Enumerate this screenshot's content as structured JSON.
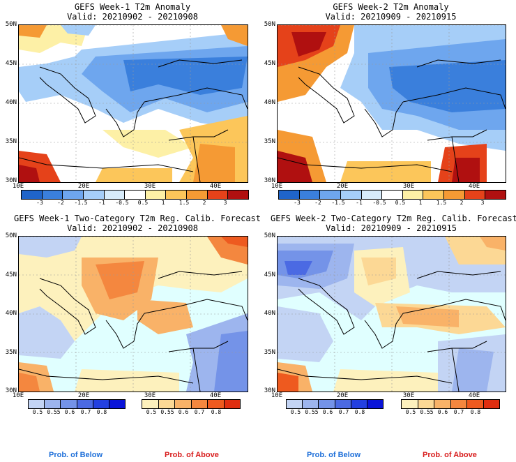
{
  "panels": [
    {
      "title1": "GEFS Week-1 T2m Anomaly",
      "title2": "Valid: 20210902 - 20210908"
    },
    {
      "title1": "GEFS Week-2 T2m Anomaly",
      "title2": "Valid: 20210909 - 20210915"
    },
    {
      "title1": "GEFS Week-1 Two-Category T2m Reg. Calib. Forecast",
      "title2": "Valid: 20210902 - 20210908"
    },
    {
      "title1": "GEFS Week-2 Two-Category T2m Reg. Calib. Forecast",
      "title2": "Valid: 20210909 - 20210915"
    }
  ],
  "lat_labels": [
    "50N",
    "45N",
    "40N",
    "35N",
    "30N"
  ],
  "lon_labels": [
    "10E",
    "20E",
    "30E",
    "40E"
  ],
  "anomaly_colorbar": {
    "ticks": [
      "-3",
      "-2",
      "-1.5",
      "-1",
      "-0.5",
      "0.5",
      "1",
      "1.5",
      "2",
      "3"
    ],
    "colors": [
      "#1f64c9",
      "#3a7fdc",
      "#6ea6ee",
      "#a6cef8",
      "#d8ecfb",
      "#ffffff",
      "#fdf0a6",
      "#fcc65a",
      "#f59a34",
      "#e5421a",
      "#b01010"
    ]
  },
  "below_colorbar": {
    "ticks": [
      "0.5",
      "0.55",
      "0.6",
      "0.7",
      "0.8"
    ],
    "colors": [
      "#c3d4f4",
      "#9db5ee",
      "#7493e8",
      "#4b6ae3",
      "#2340e0",
      "#0a14d8"
    ]
  },
  "above_colorbar": {
    "ticks": [
      "0.5",
      "0.55",
      "0.6",
      "0.7",
      "0.8"
    ],
    "colors": [
      "#fdf1bd",
      "#fcd895",
      "#f9b268",
      "#f4873f",
      "#ee5a1f",
      "#e02e10"
    ]
  },
  "legend": {
    "below_label": "Prob. of Below",
    "above_label": "Prob. of Above",
    "below_color": "#1e6fd9",
    "above_color": "#d81c1c"
  },
  "sea_color": "#e0ffff"
}
